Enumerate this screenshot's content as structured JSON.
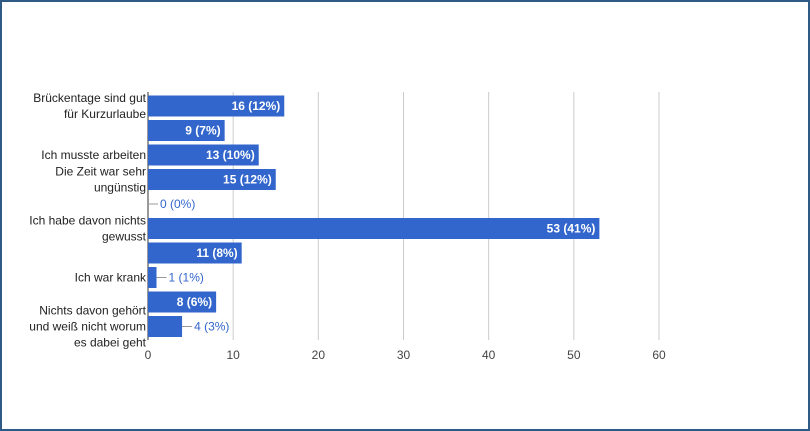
{
  "chart_data": {
    "type": "bar",
    "orientation": "horizontal",
    "title": "",
    "xlabel": "",
    "ylabel": "",
    "xlim": [
      0,
      60
    ],
    "ticks": [
      "0",
      "10",
      "20",
      "30",
      "40",
      "50",
      "60"
    ],
    "grid": true,
    "bar_color": "#3366cc",
    "bars": [
      {
        "value": 16,
        "label": "16 (12%)"
      },
      {
        "value": 9,
        "label": "9 (7%)"
      },
      {
        "value": 13,
        "label": "13 (10%)"
      },
      {
        "value": 15,
        "label": "15 (12%)"
      },
      {
        "value": 0,
        "label": "0 (0%)"
      },
      {
        "value": 53,
        "label": "53 (41%)"
      },
      {
        "value": 11,
        "label": "11 (8%)"
      },
      {
        "value": 1,
        "label": "1 (1%)"
      },
      {
        "value": 8,
        "label": "8 (6%)"
      },
      {
        "value": 4,
        "label": "4 (3%)"
      }
    ],
    "category_labels": [
      {
        "bar": 0,
        "lines": [
          "Brückentage sind gut",
          "für Kurzurlaube"
        ]
      },
      {
        "bar": 2,
        "lines": [
          "Ich musste arbeiten"
        ]
      },
      {
        "bar": 3,
        "lines": [
          "Die Zeit war sehr",
          "ungünstig"
        ]
      },
      {
        "bar": 5,
        "lines": [
          "Ich habe davon nichts",
          "gewusst"
        ]
      },
      {
        "bar": 7,
        "lines": [
          "Ich war krank"
        ]
      },
      {
        "bar": 9,
        "lines": [
          "Nichts davon gehört",
          "und weiß nicht worum",
          "es dabei geht"
        ]
      }
    ]
  }
}
